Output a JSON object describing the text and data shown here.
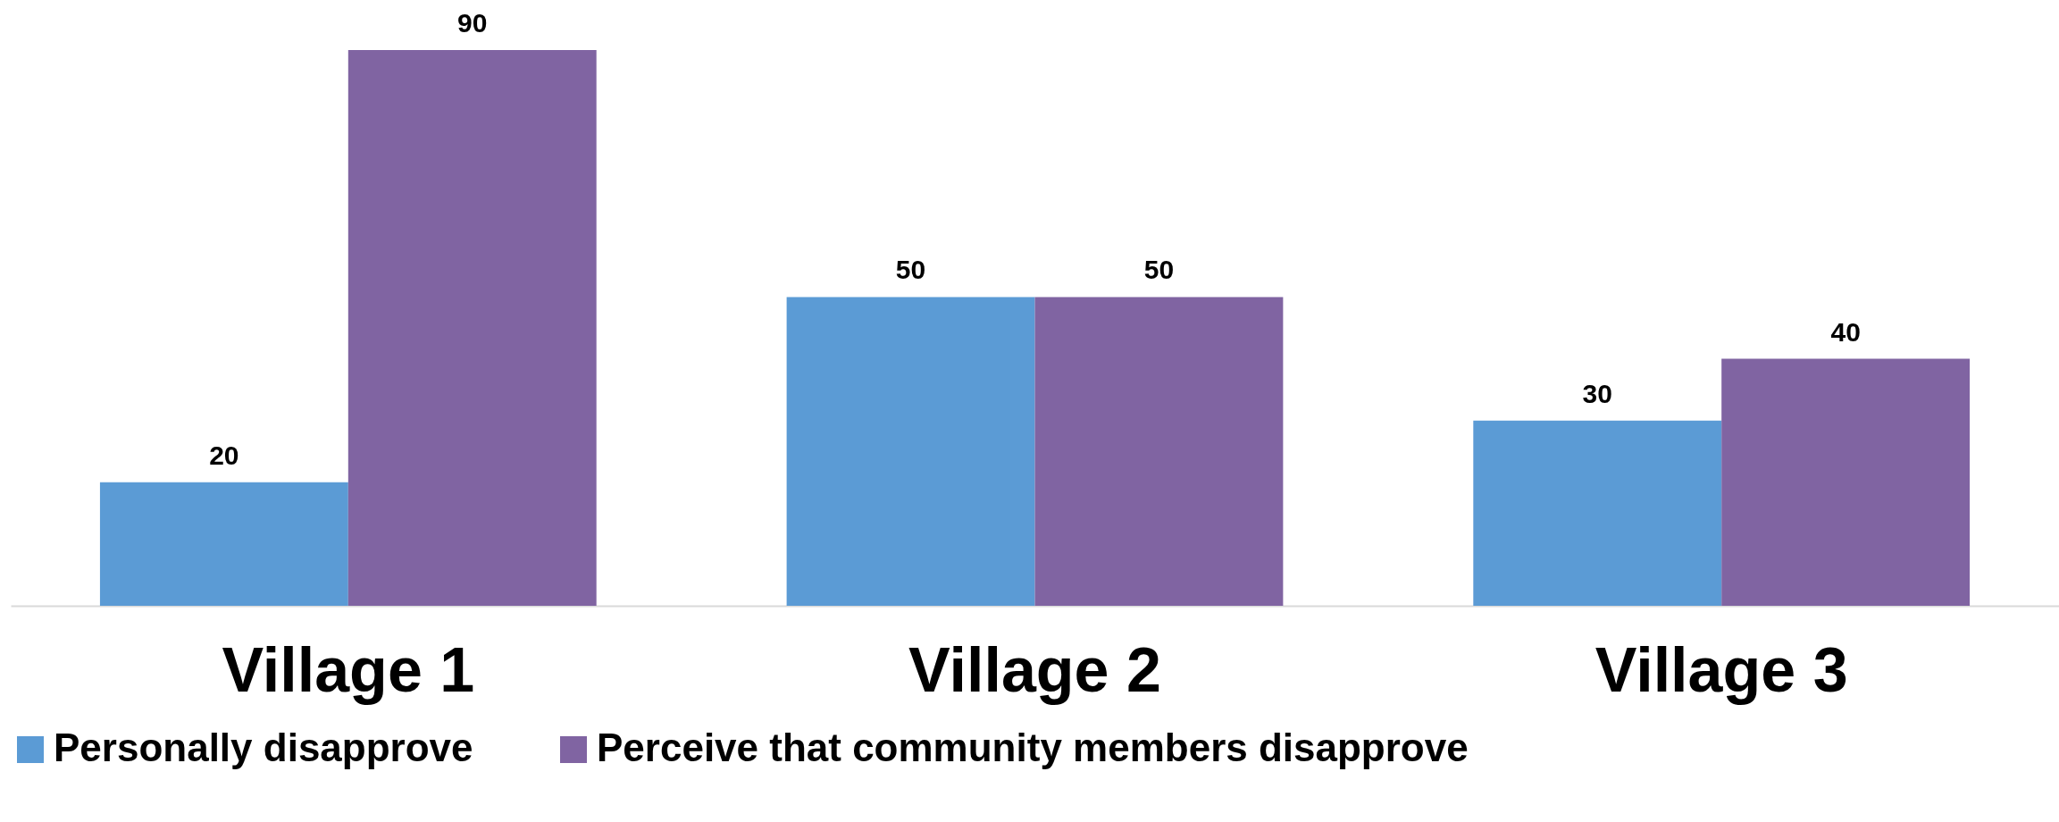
{
  "chart_data": {
    "type": "bar",
    "categories": [
      "Village 1",
      "Village 2",
      "Village 3"
    ],
    "series": [
      {
        "name": "Personally disapprove",
        "color": "#5b9bd5",
        "values": [
          20,
          50,
          30
        ]
      },
      {
        "name": "Perceive that community members disapprove",
        "color": "#8064a2",
        "values": [
          90,
          50,
          40
        ]
      }
    ],
    "data_labels": true,
    "legend": "bottom"
  }
}
